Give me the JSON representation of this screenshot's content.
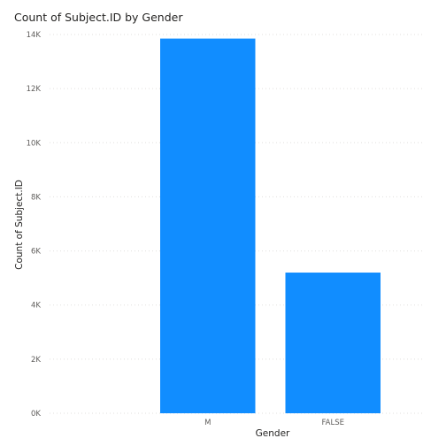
{
  "chart_data": {
    "type": "bar",
    "title": "Count of Subject.ID by Gender",
    "xlabel": "Gender",
    "ylabel": "Count of Subject.ID",
    "categories": [
      "M",
      "FALSE"
    ],
    "values": [
      13850,
      5200
    ],
    "ylim": [
      0,
      14000
    ],
    "yticks": [
      0,
      2000,
      4000,
      6000,
      8000,
      10000,
      12000,
      14000
    ],
    "ytick_labels": [
      "0K",
      "2K",
      "4K",
      "6K",
      "8K",
      "10K",
      "12K",
      "14K"
    ],
    "grid": true,
    "legend": "none",
    "bar_color": "#118DFF",
    "grid_color": "#E1DFDD"
  }
}
